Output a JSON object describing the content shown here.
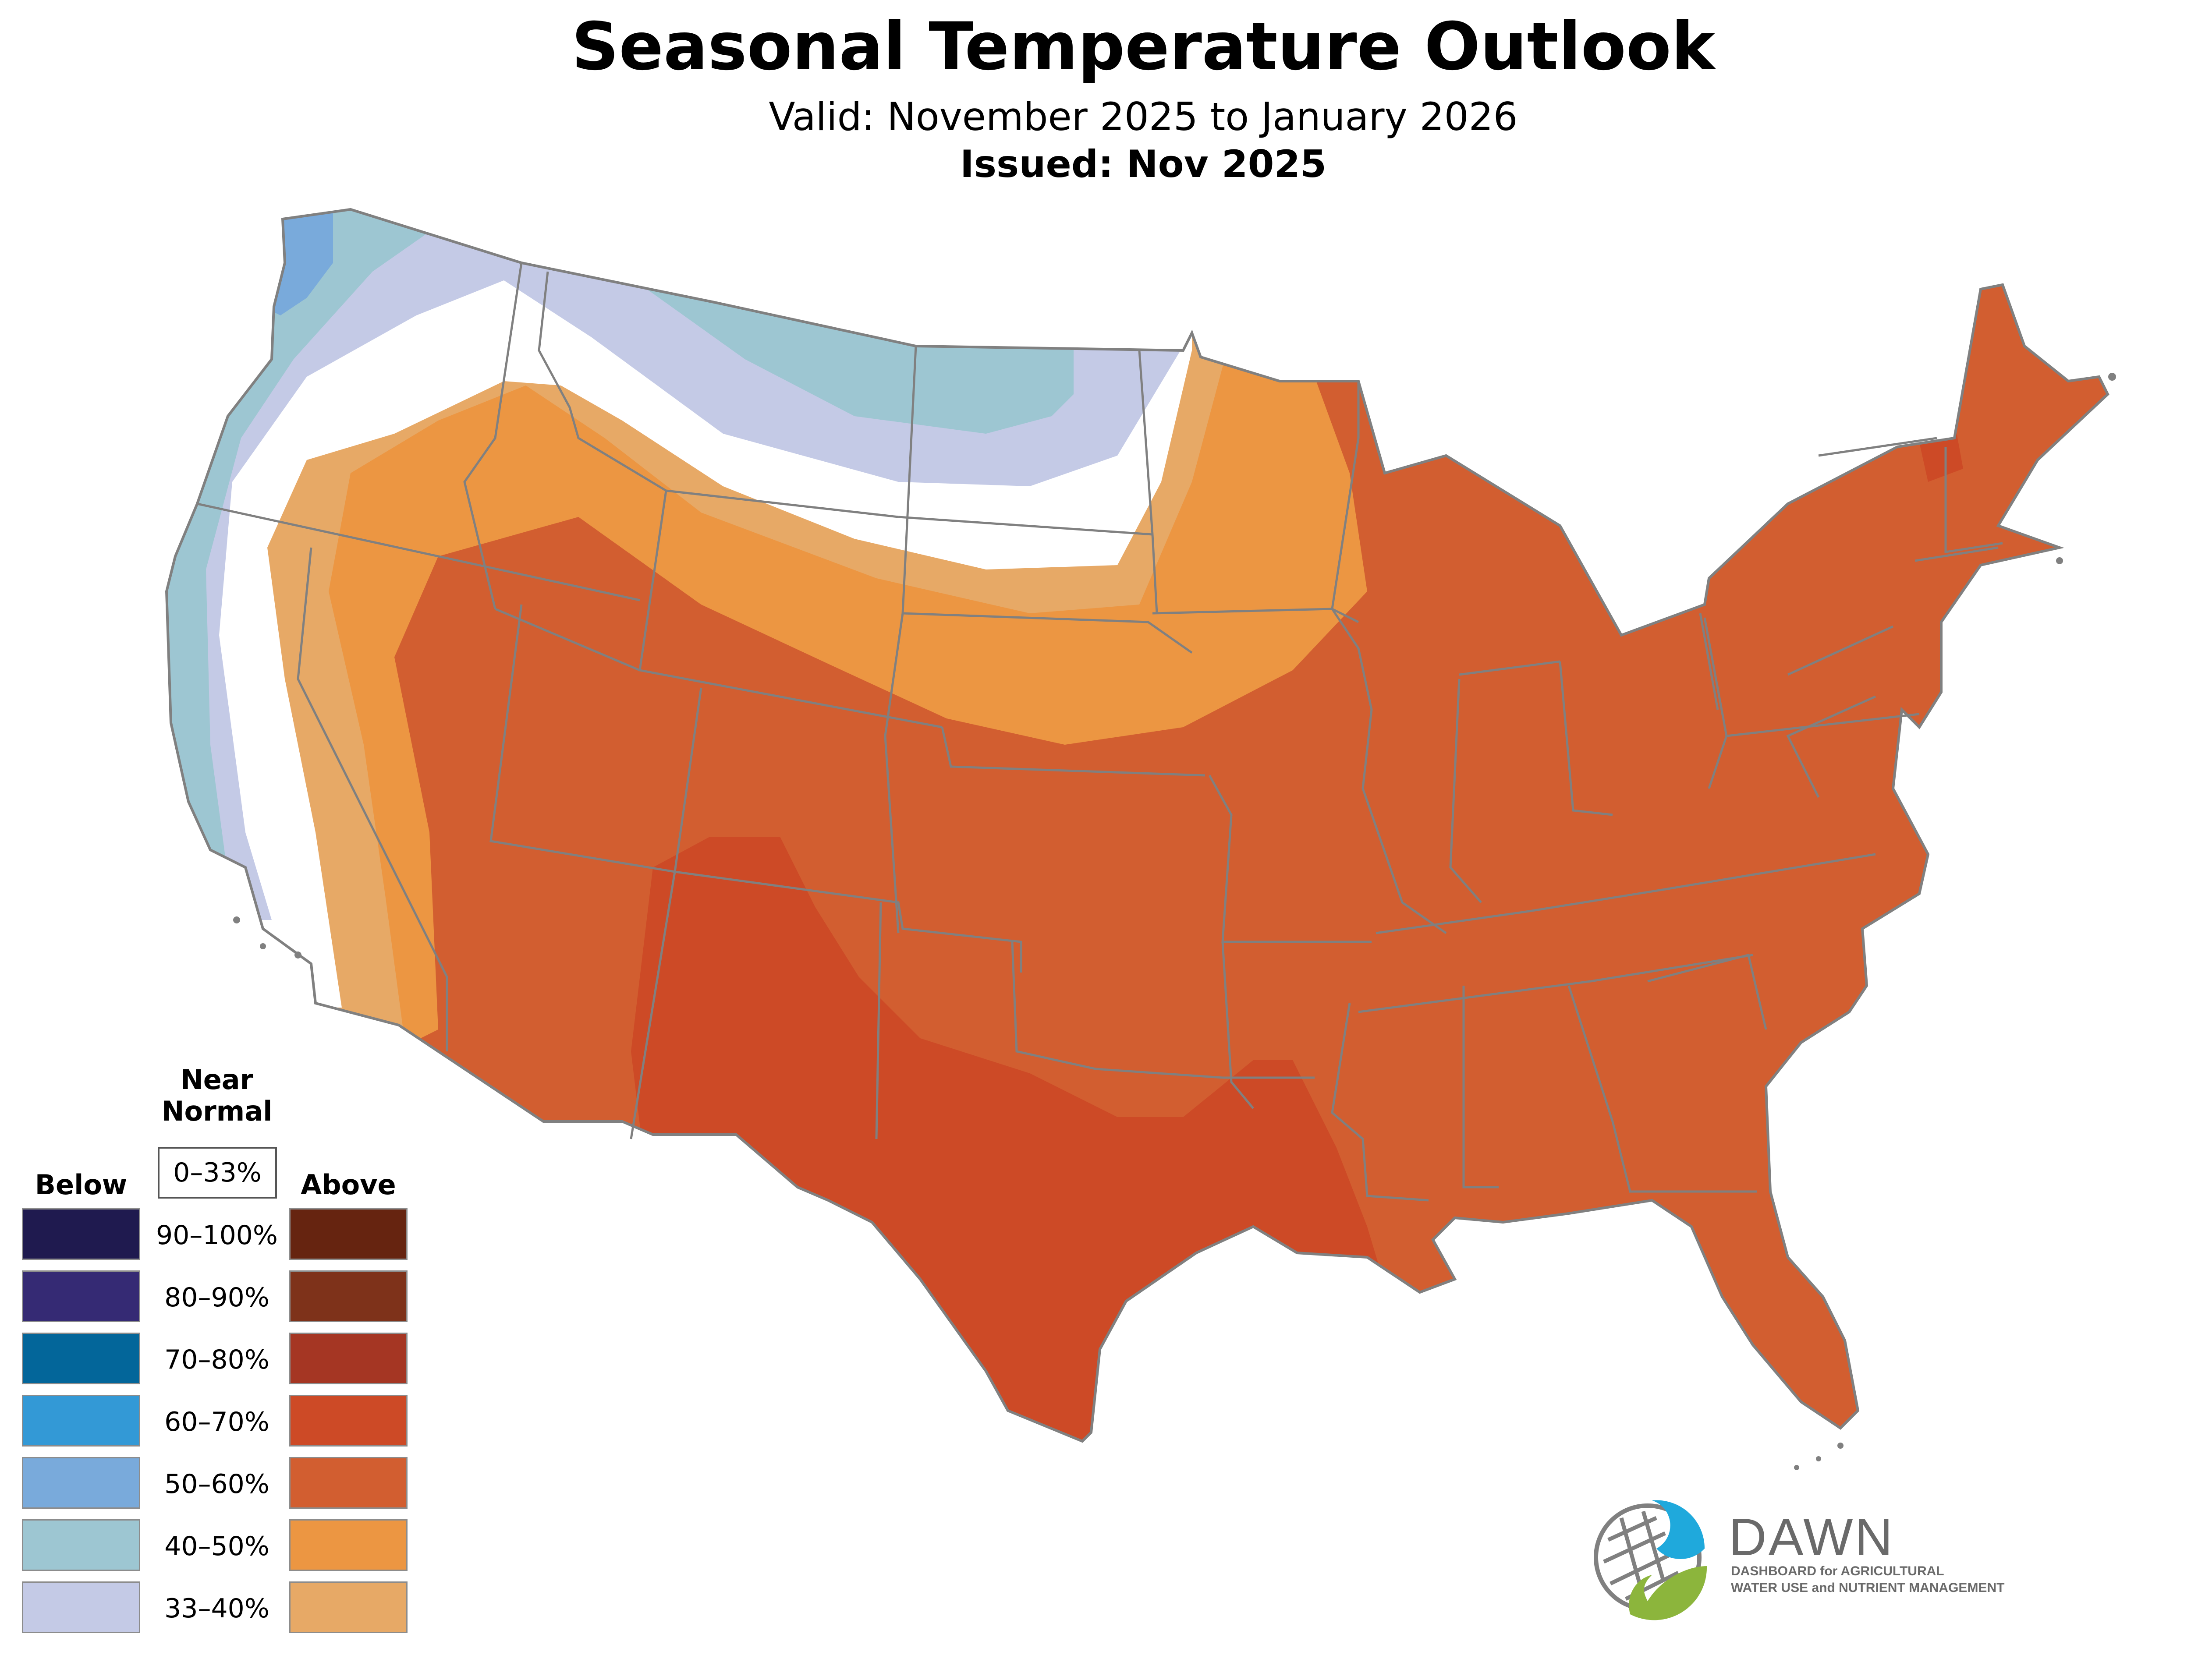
{
  "header": {
    "title": "Seasonal Temperature Outlook",
    "valid": "Valid: November 2025 to January 2026",
    "issued": "Issued: Nov 2025"
  },
  "legend": {
    "below_label": "Below",
    "near_normal_label_1": "Near",
    "near_normal_label_2": "Normal",
    "near_normal_range": "0–33%",
    "above_label": "Above",
    "ranges": [
      "90–100%",
      "80–90%",
      "70–80%",
      "60–70%",
      "50–60%",
      "40–50%",
      "33–40%"
    ],
    "below_colors": [
      "#1f1a4f",
      "#352a74",
      "#03669a",
      "#3399d6",
      "#79aadb",
      "#9dc6d2",
      "#c4cae6"
    ],
    "above_colors": [
      "#662410",
      "#7e321a",
      "#a53623",
      "#cd4a26",
      "#d25e30",
      "#ec9642",
      "#e7a966"
    ]
  },
  "map": {
    "region": "Contiguous United States",
    "category_colors": {
      "below_40_50": "#9dc6d2",
      "below_33_40": "#c4cae6",
      "below_50_60": "#79aadb",
      "near_normal": "#ffffff",
      "above_33_40": "#e7a966",
      "above_40_50": "#ec9642",
      "above_50_60": "#d25e30",
      "above_60_70": "#cd4a26"
    },
    "border_color": "#808080"
  },
  "logo": {
    "name": "DAWN",
    "line1": "DASHBOARD for AGRICULTURAL",
    "line2": "WATER USE and NUTRIENT MANAGEMENT",
    "blue": "#1fa9dc",
    "green": "#8cb53c"
  }
}
